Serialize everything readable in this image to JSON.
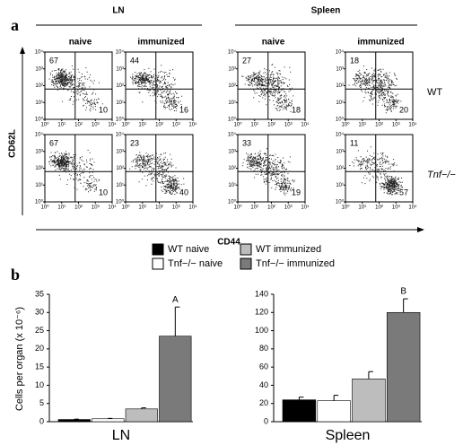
{
  "panel_a": {
    "label": "a",
    "groups": [
      "LN",
      "Spleen"
    ],
    "conditions": [
      "naive",
      "immunized"
    ],
    "genotypes": [
      "WT",
      "Tnf−/−"
    ],
    "y_axis_label": "CD62L",
    "x_axis_label": "CD44",
    "ticks": [
      {
        "value": 0,
        "label": "10⁰"
      },
      {
        "value": 1,
        "label": "10¹"
      },
      {
        "value": 2,
        "label": "10²"
      },
      {
        "value": 3,
        "label": "10³"
      },
      {
        "value": 4,
        "label": "10⁴"
      }
    ],
    "plots": [
      {
        "upper_left": 67,
        "lower_right": 10
      },
      {
        "upper_left": 44,
        "lower_right": 16
      },
      {
        "upper_left": 27,
        "lower_right": 18
      },
      {
        "upper_left": 18,
        "lower_right": 20
      },
      {
        "upper_left": 67,
        "lower_right": 10
      },
      {
        "upper_left": 23,
        "lower_right": 40
      },
      {
        "upper_left": 33,
        "lower_right": 19
      },
      {
        "upper_left": 11,
        "lower_right": 57
      }
    ]
  },
  "panel_b_label": "b",
  "chart_data": [
    {
      "type": "bar",
      "x_label": "LN",
      "y_label": "Cells per organ (x 10⁻⁶)",
      "ylim": [
        0,
        35
      ],
      "yticks": [
        0,
        5,
        10,
        15,
        20,
        25,
        30,
        35
      ],
      "series": [
        {
          "name": "WT naive",
          "color": "#000000",
          "values": [
            0.6
          ],
          "errors": [
            0.1
          ]
        },
        {
          "name": "Tnf−/− naive",
          "color": "#ffffff",
          "values": [
            0.8
          ],
          "errors": [
            0.1
          ]
        },
        {
          "name": "WT immunized",
          "color": "#bdbdbd",
          "values": [
            3.5
          ],
          "errors": [
            0.3
          ]
        },
        {
          "name": "Tnf−/− immunized",
          "color": "#7a7a7a",
          "values": [
            23.5
          ],
          "errors": [
            8
          ]
        }
      ],
      "annotations": [
        {
          "text": "A",
          "series": 3
        }
      ]
    },
    {
      "type": "bar",
      "x_label": "Spleen",
      "ylim": [
        0,
        140
      ],
      "yticks": [
        0,
        20,
        40,
        60,
        80,
        100,
        120,
        140
      ],
      "series": [
        {
          "color": "#000000",
          "values": [
            24
          ],
          "errors": [
            3
          ]
        },
        {
          "color": "#ffffff",
          "values": [
            23
          ],
          "errors": [
            6
          ]
        },
        {
          "color": "#bdbdbd",
          "values": [
            47
          ],
          "errors": [
            8
          ]
        },
        {
          "color": "#7a7a7a",
          "values": [
            120
          ],
          "errors": [
            15
          ]
        }
      ],
      "annotations": [
        {
          "text": "B",
          "series": 3
        }
      ]
    }
  ]
}
